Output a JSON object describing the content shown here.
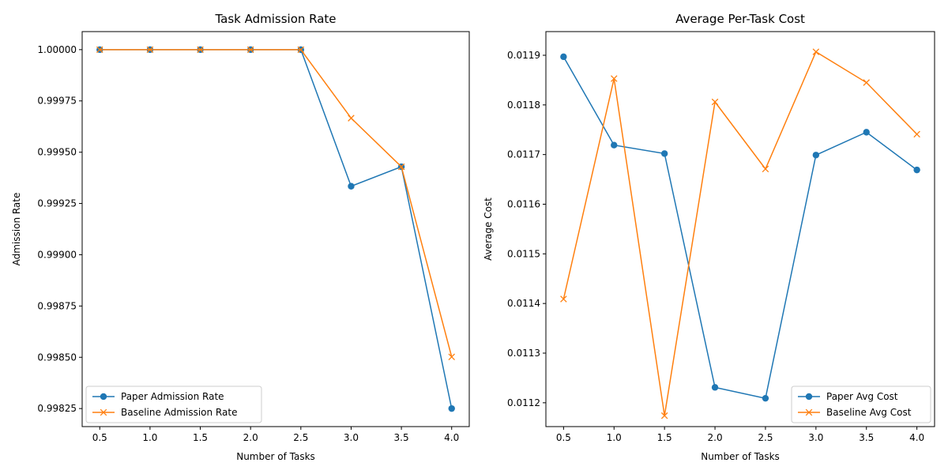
{
  "colors": {
    "paper": "#1f77b4",
    "baseline": "#ff7f0e",
    "axis": "#000000",
    "legend_border": "#cccccc"
  },
  "chart_data": [
    {
      "type": "line",
      "title": "Task Admission Rate",
      "xlabel": "Number of Tasks",
      "ylabel": "Admission Rate",
      "x": [
        0.5,
        1.0,
        1.5,
        2.0,
        2.5,
        3.0,
        3.5,
        4.0
      ],
      "xticks": [
        0.5,
        1.0,
        1.5,
        2.0,
        2.5,
        3.0,
        3.5,
        4.0
      ],
      "xtick_labels": [
        "0.5",
        "1.0",
        "1.5",
        "2.0",
        "2.5",
        "3.0",
        "3.5",
        "4.0"
      ],
      "xlim": [
        0.325,
        4.175
      ],
      "yticks": [
        0.99825,
        0.9985,
        0.99875,
        0.999,
        0.99925,
        0.9995,
        0.99975,
        1.0
      ],
      "ytick_labels": [
        "0.99825",
        "0.99850",
        "0.99875",
        "0.99900",
        "0.99925",
        "0.99950",
        "0.99975",
        "1.00000"
      ],
      "ylim": [
        0.998162,
        1.000088
      ],
      "grid": false,
      "legend_position": "lower-left",
      "series": [
        {
          "name": "Paper Admission Rate",
          "marker": "circle",
          "color_key": "paper",
          "values": [
            1.0,
            1.0,
            1.0,
            1.0,
            1.0,
            0.999334,
            0.999429,
            0.99825
          ]
        },
        {
          "name": "Baseline Admission Rate",
          "marker": "x",
          "color_key": "baseline",
          "values": [
            1.0,
            1.0,
            1.0,
            1.0,
            1.0,
            0.999666,
            0.999429,
            0.998502
          ]
        }
      ]
    },
    {
      "type": "line",
      "title": "Average Per-Task Cost",
      "xlabel": "Number of Tasks",
      "ylabel": "Average Cost",
      "x": [
        0.5,
        1.0,
        1.5,
        2.0,
        2.5,
        3.0,
        3.5,
        4.0
      ],
      "xticks": [
        0.5,
        1.0,
        1.5,
        2.0,
        2.5,
        3.0,
        3.5,
        4.0
      ],
      "xtick_labels": [
        "0.5",
        "1.0",
        "1.5",
        "2.0",
        "2.5",
        "3.0",
        "3.5",
        "4.0"
      ],
      "xlim": [
        0.325,
        4.175
      ],
      "yticks": [
        0.0112,
        0.0113,
        0.0114,
        0.0115,
        0.0116,
        0.0117,
        0.0118,
        0.0119
      ],
      "ytick_labels": [
        "0.0112",
        "0.0113",
        "0.0114",
        "0.0115",
        "0.0116",
        "0.0117",
        "0.0118",
        "0.0119"
      ],
      "ylim": [
        0.011152,
        0.0119477
      ],
      "grid": false,
      "legend_position": "lower-right",
      "series": [
        {
          "name": "Paper Avg Cost",
          "marker": "circle",
          "color_key": "paper",
          "values": [
            0.011897,
            0.011719,
            0.011702,
            0.011231,
            0.011209,
            0.011699,
            0.011745,
            0.011669
          ]
        },
        {
          "name": "Baseline Avg Cost",
          "marker": "x",
          "color_key": "baseline",
          "values": [
            0.011409,
            0.011853,
            0.011174,
            0.011806,
            0.011671,
            0.011907,
            0.011845,
            0.011741
          ]
        }
      ]
    }
  ]
}
